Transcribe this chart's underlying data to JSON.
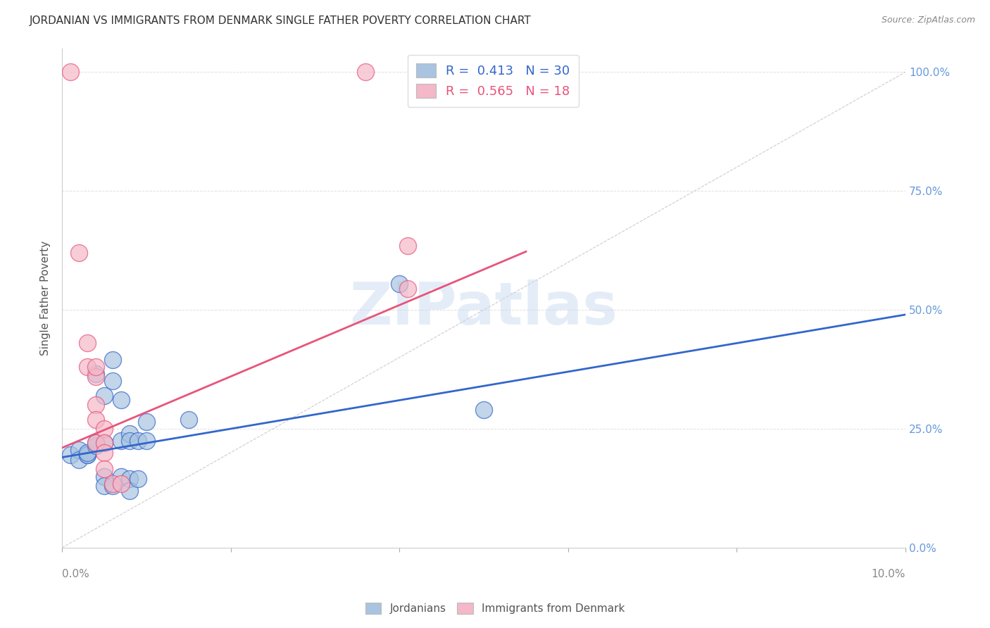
{
  "title": "JORDANIAN VS IMMIGRANTS FROM DENMARK SINGLE FATHER POVERTY CORRELATION CHART",
  "source": "Source: ZipAtlas.com",
  "ylabel": "Single Father Poverty",
  "legend1_label": "Jordanians",
  "legend2_label": "Immigrants from Denmark",
  "R1": 0.413,
  "N1": 30,
  "R2": 0.565,
  "N2": 18,
  "blue_color": "#A8C4E0",
  "pink_color": "#F4B8C8",
  "blue_line_color": "#3366CC",
  "pink_line_color": "#E8547A",
  "blue_scatter": [
    [
      0.001,
      0.195
    ],
    [
      0.002,
      0.205
    ],
    [
      0.002,
      0.185
    ],
    [
      0.003,
      0.195
    ],
    [
      0.003,
      0.195
    ],
    [
      0.003,
      0.2
    ],
    [
      0.004,
      0.215
    ],
    [
      0.004,
      0.22
    ],
    [
      0.004,
      0.365
    ],
    [
      0.005,
      0.32
    ],
    [
      0.005,
      0.22
    ],
    [
      0.005,
      0.15
    ],
    [
      0.005,
      0.13
    ],
    [
      0.006,
      0.35
    ],
    [
      0.006,
      0.395
    ],
    [
      0.006,
      0.13
    ],
    [
      0.007,
      0.31
    ],
    [
      0.007,
      0.225
    ],
    [
      0.007,
      0.15
    ],
    [
      0.008,
      0.24
    ],
    [
      0.008,
      0.225
    ],
    [
      0.008,
      0.145
    ],
    [
      0.008,
      0.12
    ],
    [
      0.009,
      0.225
    ],
    [
      0.009,
      0.145
    ],
    [
      0.01,
      0.265
    ],
    [
      0.01,
      0.225
    ],
    [
      0.015,
      0.27
    ],
    [
      0.04,
      0.555
    ],
    [
      0.05,
      0.29
    ]
  ],
  "pink_scatter": [
    [
      0.001,
      1.0
    ],
    [
      0.002,
      0.62
    ],
    [
      0.003,
      0.43
    ],
    [
      0.003,
      0.38
    ],
    [
      0.004,
      0.36
    ],
    [
      0.004,
      0.38
    ],
    [
      0.004,
      0.3
    ],
    [
      0.004,
      0.27
    ],
    [
      0.004,
      0.22
    ],
    [
      0.005,
      0.25
    ],
    [
      0.005,
      0.22
    ],
    [
      0.005,
      0.2
    ],
    [
      0.005,
      0.165
    ],
    [
      0.006,
      0.135
    ],
    [
      0.007,
      0.135
    ],
    [
      0.036,
      1.0
    ],
    [
      0.041,
      0.635
    ],
    [
      0.041,
      0.545
    ]
  ],
  "blue_line_slope": 3.0,
  "blue_line_intercept": 0.19,
  "pink_line_slope": 7.5,
  "pink_line_intercept": 0.21,
  "xlim": [
    0.0,
    0.1
  ],
  "ylim": [
    0.0,
    1.05
  ],
  "y_ticks": [
    0.0,
    0.25,
    0.5,
    0.75,
    1.0
  ],
  "x_ticks": [
    0.0,
    0.02,
    0.04,
    0.06,
    0.08,
    0.1
  ],
  "watermark_text": "ZIPatlas",
  "watermark_color": "#C5D8EE",
  "background_color": "#FFFFFF",
  "grid_color": "#E0E0E0",
  "title_color": "#333333",
  "source_color": "#888888",
  "ylabel_color": "#555555",
  "right_tick_color": "#6699DD",
  "left_tick_color": "#888888"
}
